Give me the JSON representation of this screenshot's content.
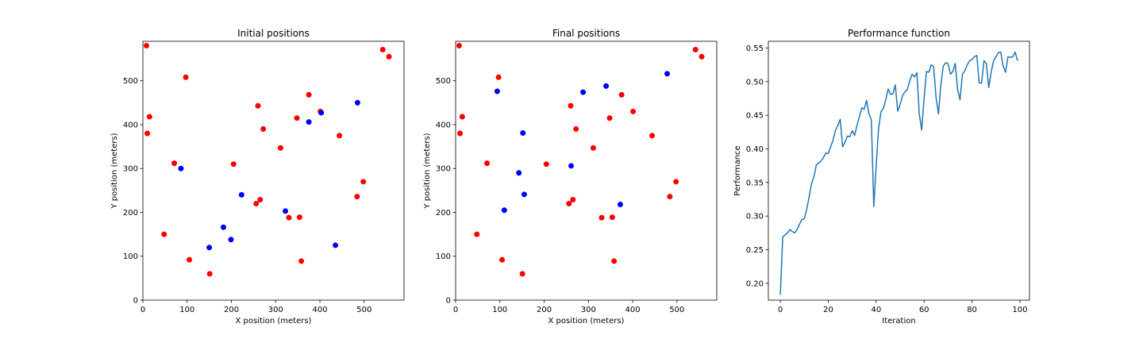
{
  "chart_data": [
    {
      "type": "scatter",
      "title": "Initial positions",
      "xlabel": "X position (meters)",
      "ylabel": "Y position (meters)",
      "xlim": [
        0,
        590
      ],
      "ylim": [
        0,
        590
      ],
      "xticks": [
        0,
        100,
        200,
        300,
        400,
        500
      ],
      "yticks": [
        0,
        100,
        200,
        300,
        400,
        500
      ],
      "grid": false,
      "series": [
        {
          "color": "#ff0000",
          "points": [
            [
              8,
              580
            ],
            [
              97,
              508
            ],
            [
              15,
              418
            ],
            [
              10,
              380
            ],
            [
              260,
              443
            ],
            [
              375,
              468
            ],
            [
              272,
              390
            ],
            [
              348,
              415
            ],
            [
              401,
              430
            ],
            [
              311,
              347
            ],
            [
              444,
              375
            ],
            [
              71,
              312
            ],
            [
              205,
              310
            ],
            [
              498,
              270
            ],
            [
              484,
              236
            ],
            [
              265,
              229
            ],
            [
              256,
              220
            ],
            [
              330,
              188
            ],
            [
              354,
              189
            ],
            [
              48,
              150
            ],
            [
              105,
              92
            ],
            [
              358,
              89
            ],
            [
              151,
              60
            ],
            [
              542,
              571
            ],
            [
              556,
              555
            ]
          ]
        },
        {
          "color": "#0000ff",
          "points": [
            [
              86,
              300
            ],
            [
              375,
              406
            ],
            [
              403,
              427
            ],
            [
              485,
              450
            ],
            [
              223,
              240
            ],
            [
              322,
              203
            ],
            [
              182,
              166
            ],
            [
              199,
              138
            ],
            [
              150,
              120
            ],
            [
              435,
              125
            ]
          ]
        }
      ]
    },
    {
      "type": "scatter",
      "title": "Final positions",
      "xlabel": "X position (meters)",
      "ylabel": "Y position (meters)",
      "xlim": [
        0,
        590
      ],
      "ylim": [
        0,
        590
      ],
      "xticks": [
        0,
        100,
        200,
        300,
        400,
        500
      ],
      "yticks": [
        0,
        100,
        200,
        300,
        400,
        500
      ],
      "grid": false,
      "series": [
        {
          "color": "#ff0000",
          "points": [
            [
              8,
              580
            ],
            [
              97,
              508
            ],
            [
              15,
              418
            ],
            [
              10,
              380
            ],
            [
              260,
              443
            ],
            [
              375,
              468
            ],
            [
              272,
              390
            ],
            [
              348,
              415
            ],
            [
              401,
              430
            ],
            [
              311,
              347
            ],
            [
              444,
              375
            ],
            [
              71,
              312
            ],
            [
              205,
              310
            ],
            [
              498,
              270
            ],
            [
              484,
              236
            ],
            [
              265,
              229
            ],
            [
              256,
              220
            ],
            [
              330,
              188
            ],
            [
              354,
              189
            ],
            [
              48,
              150
            ],
            [
              105,
              92
            ],
            [
              358,
              89
            ],
            [
              151,
              60
            ],
            [
              542,
              571
            ],
            [
              556,
              555
            ]
          ]
        },
        {
          "color": "#0000ff",
          "points": [
            [
              94,
              476
            ],
            [
              152,
              381
            ],
            [
              143,
              290
            ],
            [
              261,
              306
            ],
            [
              288,
              474
            ],
            [
              340,
              488
            ],
            [
              478,
              516
            ],
            [
              155,
              241
            ],
            [
              110,
              205
            ],
            [
              372,
              218
            ]
          ]
        }
      ]
    },
    {
      "type": "line",
      "title": "Performance function",
      "xlabel": "Iteration",
      "ylabel": "Performance",
      "xlim": [
        -5,
        104
      ],
      "ylim": [
        0.175,
        0.56
      ],
      "xticks": [
        0,
        20,
        40,
        60,
        80,
        100
      ],
      "yticks": [
        0.2,
        0.25,
        0.3,
        0.35,
        0.4,
        0.45,
        0.5,
        0.55
      ],
      "ytick_labels": [
        "0.20",
        "0.25",
        "0.30",
        "0.35",
        "0.40",
        "0.45",
        "0.50",
        "0.55"
      ],
      "grid": false,
      "color": "#1f77b4",
      "x": [
        0,
        1,
        2,
        3,
        4,
        5,
        6,
        7,
        8,
        9,
        10,
        11,
        12,
        13,
        14,
        15,
        16,
        17,
        18,
        19,
        20,
        21,
        22,
        23,
        24,
        25,
        26,
        27,
        28,
        29,
        30,
        31,
        32,
        33,
        34,
        35,
        36,
        37,
        38,
        39,
        40,
        41,
        42,
        43,
        44,
        45,
        46,
        47,
        48,
        49,
        50,
        51,
        52,
        53,
        54,
        55,
        56,
        57,
        58,
        59,
        60,
        61,
        62,
        63,
        64,
        65,
        66,
        67,
        68,
        69,
        70,
        71,
        72,
        73,
        74,
        75,
        76,
        77,
        78,
        79,
        80,
        81,
        82,
        83,
        84,
        85,
        86,
        87,
        88,
        89,
        90,
        91,
        92,
        93,
        94,
        95,
        96,
        97,
        98,
        99
      ],
      "y": [
        0.183,
        0.269,
        0.272,
        0.275,
        0.28,
        0.277,
        0.275,
        0.28,
        0.288,
        0.295,
        0.296,
        0.31,
        0.328,
        0.348,
        0.358,
        0.376,
        0.379,
        0.382,
        0.387,
        0.394,
        0.393,
        0.403,
        0.413,
        0.427,
        0.435,
        0.444,
        0.403,
        0.41,
        0.419,
        0.418,
        0.427,
        0.42,
        0.435,
        0.448,
        0.461,
        0.459,
        0.472,
        0.452,
        0.443,
        0.314,
        0.375,
        0.43,
        0.455,
        0.46,
        0.473,
        0.489,
        0.481,
        0.482,
        0.495,
        0.456,
        0.466,
        0.479,
        0.485,
        0.488,
        0.501,
        0.511,
        0.507,
        0.513,
        0.452,
        0.428,
        0.475,
        0.515,
        0.514,
        0.525,
        0.522,
        0.476,
        0.452,
        0.495,
        0.523,
        0.528,
        0.527,
        0.511,
        0.515,
        0.527,
        0.488,
        0.473,
        0.511,
        0.516,
        0.525,
        0.531,
        0.533,
        0.537,
        0.539,
        0.498,
        0.498,
        0.531,
        0.527,
        0.491,
        0.514,
        0.531,
        0.537,
        0.543,
        0.544,
        0.523,
        0.514,
        0.537,
        0.536,
        0.537,
        0.544,
        0.531
      ]
    }
  ]
}
